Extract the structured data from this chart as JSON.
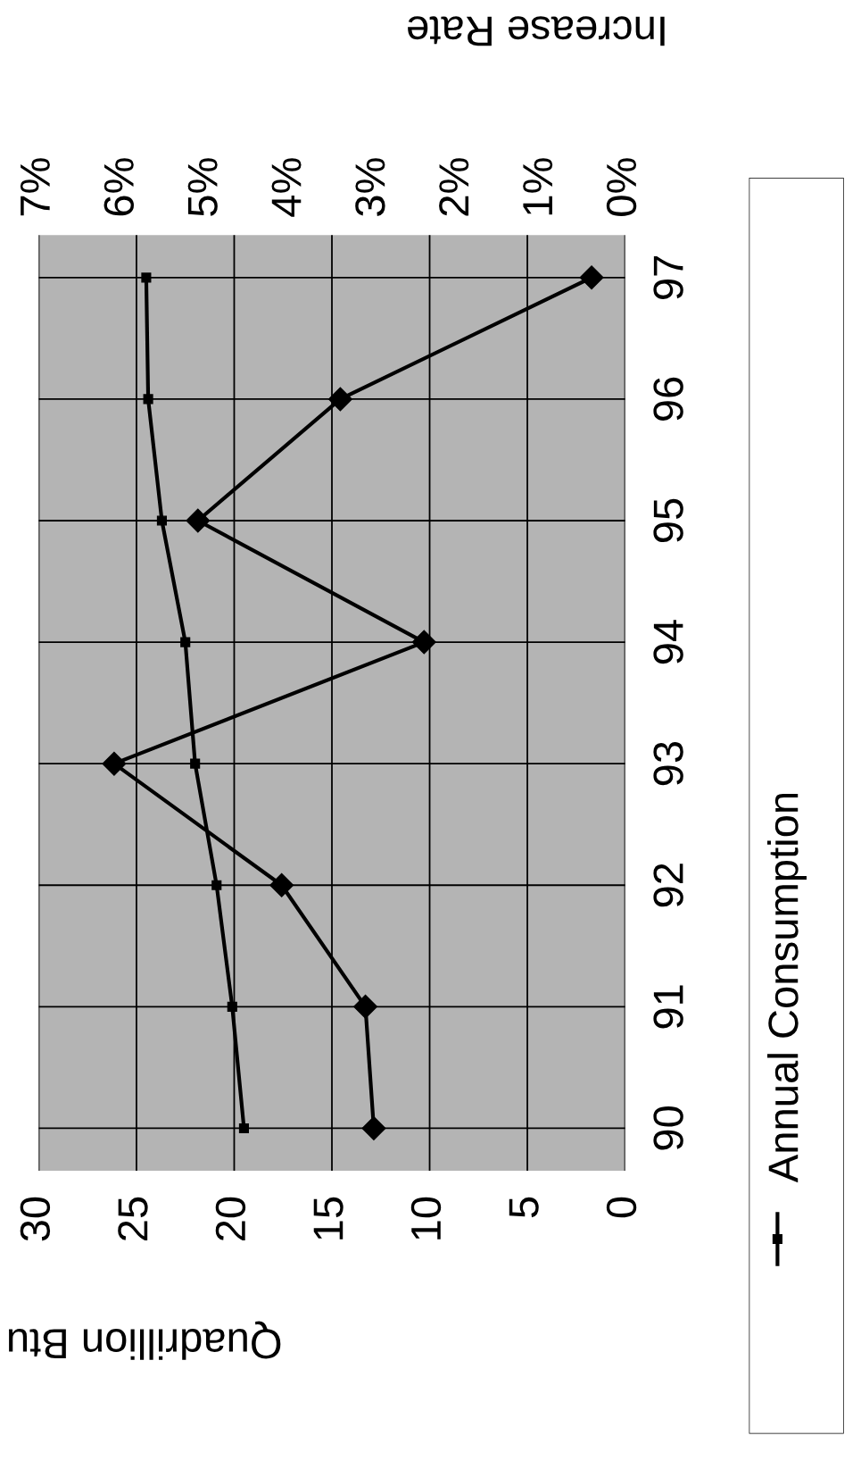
{
  "chart_data": {
    "type": "line",
    "orientation": "horizontal",
    "categories": [
      "97",
      "96",
      "95",
      "94",
      "93",
      "92",
      "91",
      "90"
    ],
    "series": [
      {
        "name": "Annual Consumption",
        "color": "#000000",
        "marker": "square",
        "values": [
          24.5,
          24.4,
          23.7,
          22.5,
          22.0,
          20.9,
          20.1,
          19.5
        ]
      },
      {
        "color": "#000000",
        "marker": "diamond",
        "axis": "x2",
        "values": [
          0.4,
          3.4,
          5.1,
          2.4,
          6.1,
          4.1,
          3.1,
          3.0
        ]
      }
    ],
    "xlabel": "Quadrillion Btu",
    "x2label": "Increase Rate",
    "xlim": [
      30,
      0
    ],
    "xticks": [
      30,
      25,
      20,
      15,
      10,
      5,
      0
    ],
    "x2lim": [
      7,
      0
    ],
    "x2ticks": [
      {
        "value": 7,
        "label": "7%"
      },
      {
        "value": 6,
        "label": "6%"
      },
      {
        "value": 5,
        "label": "5%"
      },
      {
        "value": 4,
        "label": "4%"
      },
      {
        "value": 3,
        "label": "3%"
      },
      {
        "value": 2,
        "label": "2%"
      },
      {
        "value": 1,
        "label": "1%"
      },
      {
        "value": 0,
        "label": "0%"
      }
    ],
    "grid": true,
    "legend": "right"
  }
}
